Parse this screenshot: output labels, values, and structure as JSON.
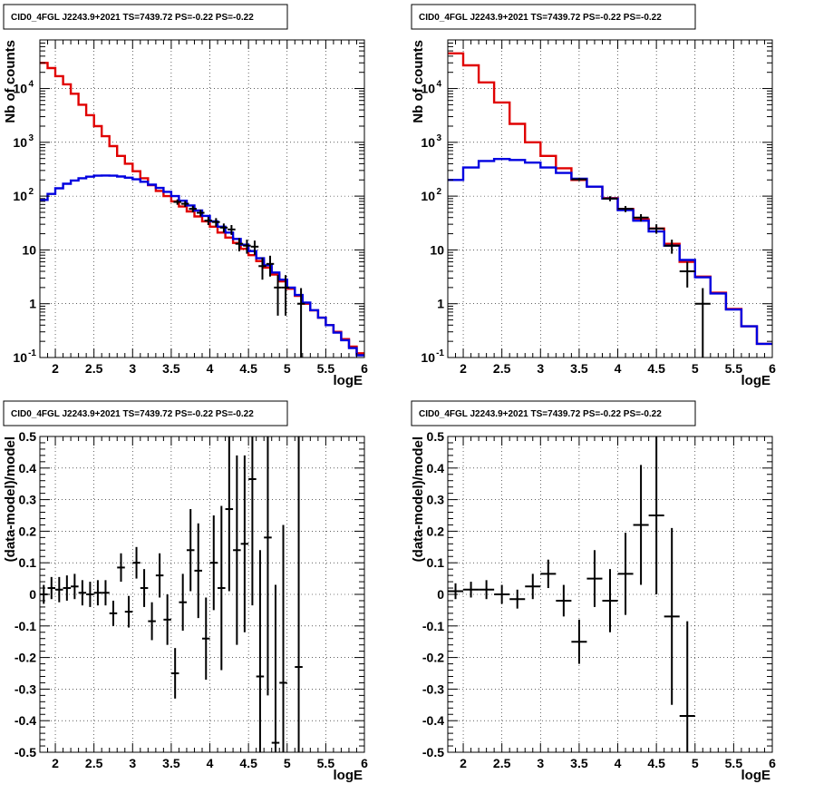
{
  "chart_data": [
    {
      "type": "line",
      "title": "CID0_4FGL J2243.9+2021 TS=7439.72 PS=-0.22 PS=-0.22",
      "xlabel": "logE",
      "ylabel": "Nb of counts",
      "xlim": [
        1.8,
        6.0
      ],
      "ylim": [
        0.1,
        80000
      ],
      "yscale": "log",
      "grid": true,
      "xticks": [
        "2",
        "2.5",
        "3",
        "3.5",
        "4",
        "4.5",
        "5",
        "5.5",
        "6"
      ],
      "yticks": [
        "10^-1",
        "1",
        "10",
        "10^2",
        "10^3",
        "10^4"
      ],
      "bin_edges": [
        1.8,
        1.9,
        2.0,
        2.1,
        2.2,
        2.3,
        2.4,
        2.5,
        2.6,
        2.7,
        2.8,
        2.9,
        3.0,
        3.1,
        3.2,
        3.3,
        3.4,
        3.5,
        3.6,
        3.7,
        3.8,
        3.9,
        4.0,
        4.1,
        4.2,
        4.3,
        4.4,
        4.5,
        4.6,
        4.7,
        4.8,
        4.9,
        5.0,
        5.1,
        5.2,
        5.3,
        5.4,
        5.5,
        5.6,
        5.7,
        5.8,
        5.9,
        6.0
      ],
      "series": [
        {
          "color": "#e00000",
          "values": [
            30000,
            24000,
            17000,
            12000,
            8000,
            5000,
            3200,
            2000,
            1300,
            850,
            560,
            400,
            290,
            215,
            160,
            125,
            100,
            80,
            64,
            52,
            42,
            34,
            27,
            21,
            17,
            13.5,
            10.5,
            8,
            6.2,
            4.7,
            3.5,
            2.6,
            1.9,
            1.4,
            1.0,
            0.75,
            0.55,
            0.4,
            0.3,
            0.22,
            0.16,
            0.12
          ]
        },
        {
          "color": "#0000e0",
          "values": [
            85,
            110,
            140,
            170,
            195,
            215,
            230,
            240,
            242,
            240,
            232,
            220,
            205,
            185,
            163,
            142,
            120,
            100,
            82,
            67,
            54,
            43,
            34,
            27,
            21,
            16,
            12.5,
            9.5,
            7,
            5.2,
            3.8,
            2.8,
            2.0,
            1.45,
            1.05,
            0.76,
            0.55,
            0.4,
            0.29,
            0.21,
            0.15,
            0.11
          ]
        }
      ],
      "data_points": [
        {
          "x": 3.58,
          "y": 78,
          "err": 9
        },
        {
          "x": 3.68,
          "y": 72,
          "err": 9
        },
        {
          "x": 3.78,
          "y": 58,
          "err": 8
        },
        {
          "x": 3.88,
          "y": 49,
          "err": 7
        },
        {
          "x": 3.98,
          "y": 35,
          "err": 6
        },
        {
          "x": 4.08,
          "y": 33,
          "err": 6
        },
        {
          "x": 4.18,
          "y": 26,
          "err": 5
        },
        {
          "x": 4.28,
          "y": 24,
          "err": 5
        },
        {
          "x": 4.38,
          "y": 13,
          "err": 3.6
        },
        {
          "x": 4.48,
          "y": 12,
          "err": 3.5
        },
        {
          "x": 4.58,
          "y": 11.5,
          "err": 3.4
        },
        {
          "x": 4.68,
          "y": 5,
          "err": 2.2
        },
        {
          "x": 4.78,
          "y": 5.5,
          "err": 2.3
        },
        {
          "x": 4.88,
          "y": 2,
          "err": 1.4
        },
        {
          "x": 4.98,
          "y": 2,
          "err": 1.4
        },
        {
          "x": 5.18,
          "y": 1,
          "err": 0.95
        }
      ]
    },
    {
      "type": "line",
      "title": "CID0_4FGL J2243.9+2021 TS=7439.72 PS=-0.22 PS=-0.22",
      "xlabel": "logE",
      "ylabel": "Nb of counts",
      "xlim": [
        1.8,
        6.0
      ],
      "ylim": [
        0.1,
        80000
      ],
      "yscale": "log",
      "grid": true,
      "xticks": [
        "2",
        "2.5",
        "3",
        "3.5",
        "4",
        "4.5",
        "5",
        "5.5",
        "6"
      ],
      "yticks": [
        "10^-1",
        "1",
        "10",
        "10^2",
        "10^3",
        "10^4"
      ],
      "bin_edges": [
        1.8,
        2.0,
        2.2,
        2.4,
        2.6,
        2.8,
        3.0,
        3.2,
        3.4,
        3.6,
        3.8,
        4.0,
        4.2,
        4.4,
        4.6,
        4.8,
        5.0,
        5.2,
        5.4,
        5.6,
        5.8,
        6.0
      ],
      "series": [
        {
          "color": "#e00000",
          "values": [
            45000,
            27000,
            13000,
            5500,
            2200,
            1000,
            560,
            330,
            200,
            150,
            92,
            58,
            37,
            25,
            13,
            6,
            3.2,
            1.6,
            0.8,
            0.38,
            0.18
          ]
        },
        {
          "color": "#0000e0",
          "values": [
            200,
            340,
            450,
            490,
            470,
            420,
            340,
            270,
            210,
            150,
            90,
            55,
            35,
            22,
            12,
            6.5,
            3.1,
            1.55,
            0.78,
            0.38,
            0.18
          ]
        }
      ],
      "data_points": [
        {
          "x": 3.5,
          "y": 205,
          "err": 14
        },
        {
          "x": 3.9,
          "y": 90,
          "err": 9.5
        },
        {
          "x": 4.1,
          "y": 58,
          "err": 7.6
        },
        {
          "x": 4.3,
          "y": 40,
          "err": 6.3
        },
        {
          "x": 4.5,
          "y": 25,
          "err": 5
        },
        {
          "x": 4.7,
          "y": 12,
          "err": 3.5
        },
        {
          "x": 4.9,
          "y": 4,
          "err": 2
        },
        {
          "x": 5.1,
          "y": 1,
          "err": 0.95
        }
      ]
    },
    {
      "type": "scatter",
      "title": "CID0_4FGL J2243.9+2021 TS=7439.72 PS=-0.22 PS=-0.22",
      "xlabel": "logE",
      "ylabel": "(data-model)/model",
      "xlim": [
        1.8,
        6.0
      ],
      "ylim": [
        -0.5,
        0.5
      ],
      "grid": true,
      "xticks": [
        "2",
        "2.5",
        "3",
        "3.5",
        "4",
        "4.5",
        "5",
        "5.5",
        "6"
      ],
      "yticks": [
        "-0.5",
        "-0.4",
        "-0.3",
        "-0.2",
        "-0.1",
        "0",
        "0.1",
        "0.2",
        "0.3",
        "0.4",
        "0.5"
      ],
      "points": [
        {
          "x": 1.85,
          "y": 0.0,
          "err": 0.03
        },
        {
          "x": 1.95,
          "y": 0.02,
          "err": 0.035
        },
        {
          "x": 2.05,
          "y": 0.015,
          "err": 0.04
        },
        {
          "x": 2.15,
          "y": 0.02,
          "err": 0.04
        },
        {
          "x": 2.25,
          "y": 0.025,
          "err": 0.04
        },
        {
          "x": 2.35,
          "y": 0.005,
          "err": 0.04
        },
        {
          "x": 2.45,
          "y": 0.0,
          "err": 0.04
        },
        {
          "x": 2.55,
          "y": 0.005,
          "err": 0.04
        },
        {
          "x": 2.65,
          "y": 0.005,
          "err": 0.04
        },
        {
          "x": 2.75,
          "y": -0.06,
          "err": 0.04
        },
        {
          "x": 2.85,
          "y": 0.085,
          "err": 0.045
        },
        {
          "x": 2.95,
          "y": -0.055,
          "err": 0.05
        },
        {
          "x": 3.05,
          "y": 0.1,
          "err": 0.05
        },
        {
          "x": 3.15,
          "y": 0.02,
          "err": 0.06
        },
        {
          "x": 3.25,
          "y": -0.085,
          "err": 0.06
        },
        {
          "x": 3.35,
          "y": 0.06,
          "err": 0.07
        },
        {
          "x": 3.45,
          "y": -0.08,
          "err": 0.08
        },
        {
          "x": 3.55,
          "y": -0.25,
          "err": 0.08
        },
        {
          "x": 3.65,
          "y": -0.025,
          "err": 0.09
        },
        {
          "x": 3.75,
          "y": 0.14,
          "err": 0.13
        },
        {
          "x": 3.85,
          "y": 0.075,
          "err": 0.15
        },
        {
          "x": 3.95,
          "y": -0.14,
          "err": 0.13
        },
        {
          "x": 4.05,
          "y": 0.1,
          "err": 0.15
        },
        {
          "x": 4.15,
          "y": 0.02,
          "err": 0.26
        },
        {
          "x": 4.25,
          "y": 0.27,
          "err": 0.26
        },
        {
          "x": 4.35,
          "y": 0.14,
          "err": 0.3
        },
        {
          "x": 4.45,
          "y": 0.16,
          "err": 0.28
        },
        {
          "x": 4.55,
          "y": 0.365,
          "err": 0.4
        },
        {
          "x": 4.65,
          "y": -0.26,
          "err": 0.4
        },
        {
          "x": 4.75,
          "y": 0.18,
          "err": 0.5
        },
        {
          "x": 4.85,
          "y": -0.47,
          "err": 0.5
        },
        {
          "x": 4.95,
          "y": -0.28,
          "err": 0.5
        },
        {
          "x": 5.15,
          "y": -0.23,
          "err": 0.95
        }
      ]
    },
    {
      "type": "scatter",
      "title": "CID0_4FGL J2243.9+2021 TS=7439.72 PS=-0.22 PS=-0.22",
      "xlabel": "logE",
      "ylabel": "(data-model)/model",
      "xlim": [
        1.8,
        6.0
      ],
      "ylim": [
        -0.5,
        0.5
      ],
      "grid": true,
      "xticks": [
        "2",
        "2.5",
        "3",
        "3.5",
        "4",
        "4.5",
        "5",
        "5.5",
        "6"
      ],
      "yticks": [
        "-0.5",
        "-0.4",
        "-0.3",
        "-0.2",
        "-0.1",
        "0",
        "0.1",
        "0.2",
        "0.3",
        "0.4",
        "0.5"
      ],
      "points": [
        {
          "x": 1.9,
          "y": 0.01,
          "err": 0.025
        },
        {
          "x": 2.1,
          "y": 0.015,
          "err": 0.025
        },
        {
          "x": 2.3,
          "y": 0.015,
          "err": 0.03
        },
        {
          "x": 2.5,
          "y": 0.0,
          "err": 0.03
        },
        {
          "x": 2.7,
          "y": -0.015,
          "err": 0.03
        },
        {
          "x": 2.9,
          "y": 0.025,
          "err": 0.04
        },
        {
          "x": 3.1,
          "y": 0.065,
          "err": 0.045
        },
        {
          "x": 3.3,
          "y": -0.02,
          "err": 0.05
        },
        {
          "x": 3.5,
          "y": -0.15,
          "err": 0.07
        },
        {
          "x": 3.7,
          "y": 0.05,
          "err": 0.09
        },
        {
          "x": 3.9,
          "y": -0.02,
          "err": 0.1
        },
        {
          "x": 4.1,
          "y": 0.065,
          "err": 0.13
        },
        {
          "x": 4.3,
          "y": 0.22,
          "err": 0.19
        },
        {
          "x": 4.5,
          "y": 0.25,
          "err": 0.25
        },
        {
          "x": 4.7,
          "y": -0.07,
          "err": 0.28
        },
        {
          "x": 4.9,
          "y": -0.385,
          "err": 0.3
        }
      ]
    }
  ]
}
